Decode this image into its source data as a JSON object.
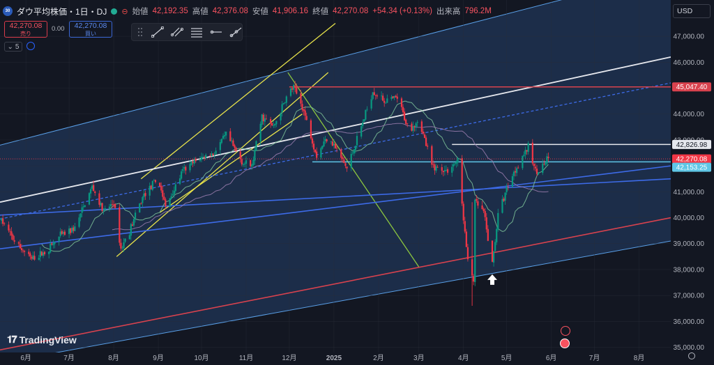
{
  "header": {
    "logo_text": "30",
    "title": "ダウ平均株価・1日・DJ",
    "market_icon": "market-closed-icon",
    "ohlc": [
      {
        "label": "始値",
        "value": "42,192.35"
      },
      {
        "label": "高値",
        "value": "42,376.08"
      },
      {
        "label": "安値",
        "value": "41,906.16"
      },
      {
        "label": "終値",
        "value": "42,270.08"
      }
    ],
    "change": "+54.34 (+0.13%)",
    "volume_label": "出来高",
    "volume_value": "796.2M"
  },
  "trade": {
    "sell_price": "42,270.08",
    "sell_label": "売り",
    "spread": "0.00",
    "buy_price": "42,270.08",
    "buy_label": "買い"
  },
  "indicators": {
    "count": "5"
  },
  "currency": "USD",
  "brand": "TradingView",
  "colors": {
    "background": "#131722",
    "channel_fill": "#1e3150",
    "candle_up": "#089981",
    "candle_down": "#f23645",
    "yellow_lines": "#e8e34b",
    "green_line": "#8cc63f",
    "white_lines": "#e6e8ee",
    "blue_lines": "#3d6be8",
    "red_lines": "#d8424e",
    "cyan_line": "#5fc6e6"
  },
  "chart_data": {
    "type": "candlestick",
    "symbol": "DJ",
    "interval": "1日",
    "ylim": [
      34800,
      48400
    ],
    "y_ticks": [
      35000,
      36000,
      37000,
      38000,
      39000,
      40000,
      41000,
      42000,
      43000,
      44000,
      45000,
      46000,
      47000
    ],
    "y_tick_labels": [
      "35,000.00",
      "36,000.00",
      "37,000.00",
      "38,000.00",
      "39,000.00",
      "40,000.00",
      "41,000.00",
      "42,000.00",
      "43,000.00",
      "44,000.00",
      "45,000.00",
      "46,000.00",
      "47,000.00"
    ],
    "x_ticks": [
      {
        "label": "6月",
        "date": "2024-06-01"
      },
      {
        "label": "7月",
        "date": "2024-07-01"
      },
      {
        "label": "8月",
        "date": "2024-08-01"
      },
      {
        "label": "9月",
        "date": "2024-09-01"
      },
      {
        "label": "10月",
        "date": "2024-10-01"
      },
      {
        "label": "11月",
        "date": "2024-11-01"
      },
      {
        "label": "12月",
        "date": "2024-12-01"
      },
      {
        "label": "2025",
        "date": "2025-01-01"
      },
      {
        "label": "2月",
        "date": "2025-02-01"
      },
      {
        "label": "3月",
        "date": "2025-03-01"
      },
      {
        "label": "4月",
        "date": "2025-04-01"
      },
      {
        "label": "5月",
        "date": "2025-05-01"
      },
      {
        "label": "6月",
        "date": "2025-06-01"
      },
      {
        "label": "7月",
        "date": "2025-07-01"
      },
      {
        "label": "8月",
        "date": "2025-08-01"
      }
    ],
    "xlim": [
      "2024-05-14",
      "2025-08-23"
    ],
    "close_path": [
      [
        "2024-05-15",
        39900
      ],
      [
        "2024-05-25",
        39000
      ],
      [
        "2024-06-05",
        38400
      ],
      [
        "2024-06-15",
        38700
      ],
      [
        "2024-06-25",
        39300
      ],
      [
        "2024-07-05",
        39600
      ],
      [
        "2024-07-17",
        41200
      ],
      [
        "2024-07-25",
        40200
      ],
      [
        "2024-08-01",
        40600
      ],
      [
        "2024-08-06",
        38800
      ],
      [
        "2024-08-12",
        39500
      ],
      [
        "2024-08-22",
        40900
      ],
      [
        "2024-09-01",
        41500
      ],
      [
        "2024-09-06",
        40400
      ],
      [
        "2024-09-18",
        41800
      ],
      [
        "2024-09-30",
        42300
      ],
      [
        "2024-10-10",
        42500
      ],
      [
        "2024-10-18",
        43200
      ],
      [
        "2024-10-30",
        42100
      ],
      [
        "2024-11-05",
        42000
      ],
      [
        "2024-11-12",
        43900
      ],
      [
        "2024-11-20",
        43500
      ],
      [
        "2024-12-01",
        44900
      ],
      [
        "2024-12-04",
        45000
      ],
      [
        "2024-12-10",
        44300
      ],
      [
        "2024-12-20",
        42400
      ],
      [
        "2024-12-28",
        43200
      ],
      [
        "2025-01-10",
        41900
      ],
      [
        "2025-01-20",
        43500
      ],
      [
        "2025-01-28",
        44900
      ],
      [
        "2025-02-05",
        44500
      ],
      [
        "2025-02-14",
        44600
      ],
      [
        "2025-02-22",
        43400
      ],
      [
        "2025-03-01",
        43800
      ],
      [
        "2025-03-10",
        42000
      ],
      [
        "2025-03-20",
        41800
      ],
      [
        "2025-03-28",
        42200
      ],
      [
        "2025-04-04",
        38300
      ],
      [
        "2025-04-08",
        37600
      ],
      [
        "2025-04-09",
        40600
      ],
      [
        "2025-04-15",
        40200
      ],
      [
        "2025-04-21",
        38200
      ],
      [
        "2025-04-25",
        40100
      ],
      [
        "2025-05-02",
        41300
      ],
      [
        "2025-05-12",
        42400
      ],
      [
        "2025-05-16",
        42700
      ],
      [
        "2025-05-21",
        41800
      ],
      [
        "2025-05-26",
        42000
      ],
      [
        "2025-05-30",
        42270
      ]
    ],
    "current_price": {
      "value": 42270.08,
      "label": "42,270.08"
    },
    "price_labels": [
      {
        "value": 45047.4,
        "label": "45,047.40",
        "color": "#d8424e"
      },
      {
        "value": 42826.98,
        "label": "42,826.98",
        "color": "#e6e8ee"
      },
      {
        "value": 42270.08,
        "label": "42,270.08",
        "color": "#f23645"
      },
      {
        "value": 42153.25,
        "label": "42,153.25",
        "color": "#5fc6e6"
      }
    ],
    "horizontal_lines": [
      {
        "value": 45047.4,
        "from": "2024-12-01",
        "color": "#d8424e"
      },
      {
        "value": 42826.98,
        "from": "2025-03-24",
        "color": "#e6e8ee"
      },
      {
        "value": 42153.25,
        "from": "2024-12-17",
        "color": "#5fc6e6"
      }
    ],
    "trend_lines": [
      {
        "name": "yellow-channel-upper",
        "color": "#e8e34b",
        "points": [
          [
            "2024-08-20",
            41500
          ],
          [
            "2025-01-02",
            47500
          ]
        ]
      },
      {
        "name": "yellow-channel-mid",
        "color": "#e8e34b",
        "points": [
          [
            "2024-08-03",
            38500
          ],
          [
            "2024-12-28",
            45600
          ]
        ]
      },
      {
        "name": "yellow-channel-lower",
        "color": "#e8e34b",
        "points": [
          [
            "2024-09-02",
            40200
          ],
          [
            "2024-12-10",
            44000
          ]
        ]
      },
      {
        "name": "green-downtrend",
        "color": "#8cc63f",
        "points": [
          [
            "2024-11-30",
            45600
          ],
          [
            "2025-03-01",
            38100
          ]
        ]
      },
      {
        "name": "white-channel-upper",
        "color": "#e6e8ee",
        "points": [
          [
            "2024-05-14",
            40600
          ],
          [
            "2025-08-23",
            46200
          ]
        ]
      },
      {
        "name": "white-channel-dashed",
        "color": "#3d6be8",
        "dashed": true,
        "points": [
          [
            "2024-05-14",
            39950
          ],
          [
            "2025-08-23",
            45200
          ]
        ]
      },
      {
        "name": "blue-lower-flat",
        "color": "#3d6be8",
        "points": [
          [
            "2024-05-14",
            40100
          ],
          [
            "2025-08-23",
            41500
          ]
        ]
      },
      {
        "name": "blue-lower-steep",
        "color": "#3d6be8",
        "points": [
          [
            "2024-05-14",
            38800
          ],
          [
            "2025-08-23",
            42000
          ]
        ]
      },
      {
        "name": "red-rising",
        "color": "#d8424e",
        "points": [
          [
            "2024-05-14",
            34900
          ],
          [
            "2025-08-23",
            40000
          ]
        ]
      }
    ],
    "arrow_marker": {
      "date": "2025-04-21",
      "value": 37600
    }
  }
}
